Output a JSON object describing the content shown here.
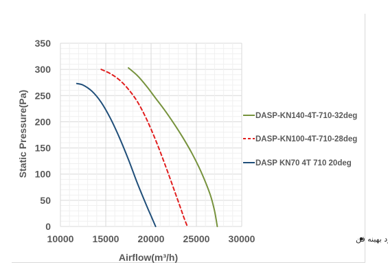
{
  "chart_data": {
    "type": "line",
    "title": "",
    "xlabel": "Airflow(m³/h)",
    "ylabel": "Static Pressure(Pa)",
    "xlim": [
      10000,
      30000
    ],
    "ylim": [
      0,
      350
    ],
    "x_ticks": [
      "10000",
      "15000",
      "20000",
      "25000",
      "30000"
    ],
    "y_ticks": [
      "0",
      "50",
      "100",
      "150",
      "200",
      "250",
      "300",
      "350"
    ],
    "grid": true,
    "legend_position": "right",
    "series": [
      {
        "name": "DASP-KN140-4T-710-32deg",
        "color": "#76923c",
        "dash": "solid",
        "x": [
          17500,
          18500,
          19500,
          20500,
          21500,
          22500,
          23500,
          24500,
          25500,
          26500,
          27000,
          27300
        ],
        "y": [
          303,
          288,
          268,
          245,
          222,
          197,
          170,
          140,
          105,
          62,
          30,
          0
        ]
      },
      {
        "name": "DASP-KN100-4T-710-28deg",
        "color": "#e11d1d",
        "dash": "dashed",
        "x": [
          14500,
          15500,
          16500,
          17500,
          18500,
          19500,
          20500,
          21500,
          22500,
          23200,
          23600,
          24000
        ],
        "y": [
          300,
          292,
          280,
          262,
          238,
          205,
          165,
          120,
          72,
          38,
          18,
          0
        ]
      },
      {
        "name": "DASP KN70 4T 710 20deg",
        "color": "#1f4e79",
        "dash": "solid",
        "x": [
          11800,
          12500,
          13500,
          14500,
          15500,
          16500,
          17500,
          18500,
          19500,
          20000,
          20500
        ],
        "y": [
          273,
          270,
          258,
          237,
          207,
          170,
          128,
          82,
          40,
          20,
          0
        ]
      }
    ],
    "annotation": "نقطه عملکرد بهینه فن"
  }
}
